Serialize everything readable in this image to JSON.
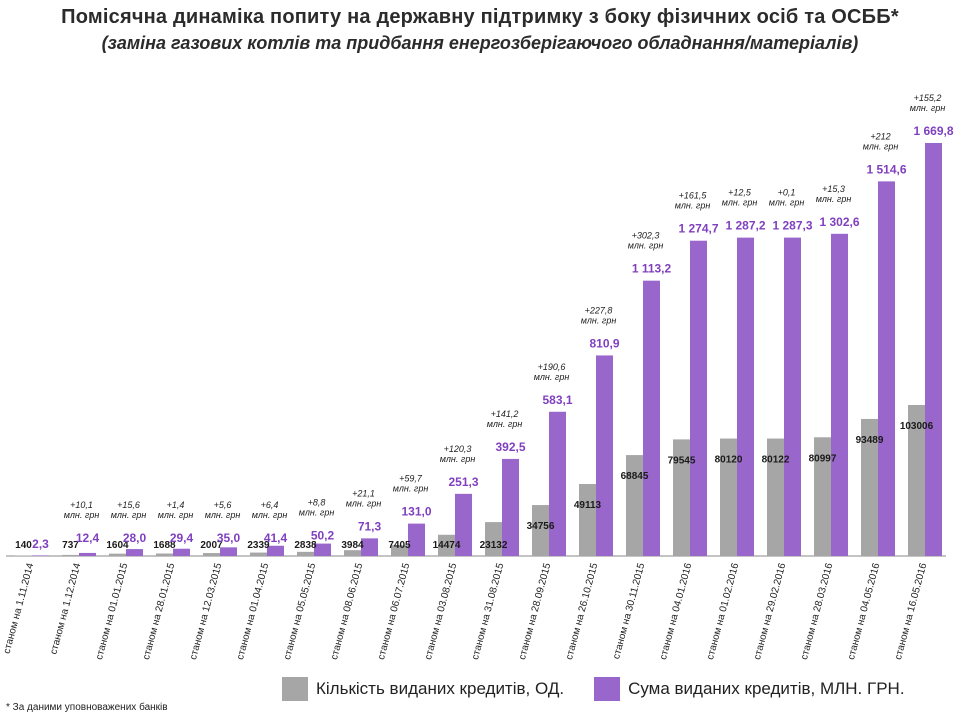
{
  "title": "Помісячна динаміка попиту на державну підтримку з боку фізичних осіб та ОСББ*",
  "subtitle": "(заміна газових котлів  та  придбання енергозберігаючого обладнання/матеріалів)",
  "footnote": "* За даними уповноважених банків",
  "colors": {
    "count": "#a6a6a6",
    "sum": "#9966cc",
    "sum_label": "#7f3fbf"
  },
  "chart_data": {
    "type": "bar",
    "categories": [
      "станом на 1.11.2014",
      "станом на 1.12.2014",
      "станом на 01.01.2015",
      "станом на 28.01.2015",
      "станом на 12.03.2015",
      "станом на 01.04.2015",
      "станом на 05.05.2015",
      "станом на 08.06.2015",
      "станом на 06.07.2015",
      "станом на 03.08.2015",
      "станом на 31.08.2015",
      "станом на 28.09.2015",
      "станом на 26.10.2015",
      "станом на 30.11.2015",
      "станом на 04.01.2016",
      "станом на 01.02.2016",
      "станом на 29.02.2016",
      "станом на 28.03.2016",
      "станом на 04.05.2016",
      "станом на 16.05.2016"
    ],
    "series": [
      {
        "name": "Кількість виданих кредитів, ОД.",
        "values": [
          140,
          737,
          1604,
          1688,
          2007,
          2339,
          2838,
          3984,
          7405,
          14474,
          23132,
          34756,
          49113,
          68845,
          79545,
          80120,
          80122,
          80997,
          93489,
          103006
        ],
        "labels": [
          "140",
          "737",
          "1604",
          "1688",
          "2007",
          "2339",
          "2838",
          "3984",
          "7405",
          "14474",
          "23132",
          "34756",
          "49113",
          "68845",
          "79545",
          "80120",
          "80122",
          "80997",
          "93489",
          "103006"
        ]
      },
      {
        "name": "Сума виданих кредитів, МЛН. ГРН.",
        "values": [
          2.3,
          12.4,
          28.0,
          29.4,
          35.0,
          41.4,
          50.2,
          71.3,
          131.0,
          251.3,
          392.5,
          583.1,
          810.9,
          1113.2,
          1274.7,
          1287.2,
          1287.3,
          1302.6,
          1514.6,
          1669.8
        ],
        "labels": [
          "2,3",
          "12,4",
          "28,0",
          "29,4",
          "35,0",
          "41,4",
          "50,2",
          "71,3",
          "131,0",
          "251,3",
          "392,5",
          "583,1",
          "810,9",
          "1 113,2",
          "1 274,7",
          "1 287,2",
          "1 287,3",
          "1 302,6",
          "1 514,6",
          "1 669,8"
        ]
      }
    ],
    "increments": [
      "",
      "+10,1",
      "+15,6",
      "+1,4",
      "+5,6",
      "+6,4",
      "+8,8",
      "+21,1",
      "+59,7",
      "+120,3",
      "+141,2",
      "+190,6",
      "+227,8",
      "+302,3",
      "+161,5",
      "+12,5",
      "+0,1",
      "+15,3",
      "+212",
      "+155,2"
    ],
    "increment_unit": "млн. грн",
    "legend_position": "bottom",
    "grid": false
  }
}
